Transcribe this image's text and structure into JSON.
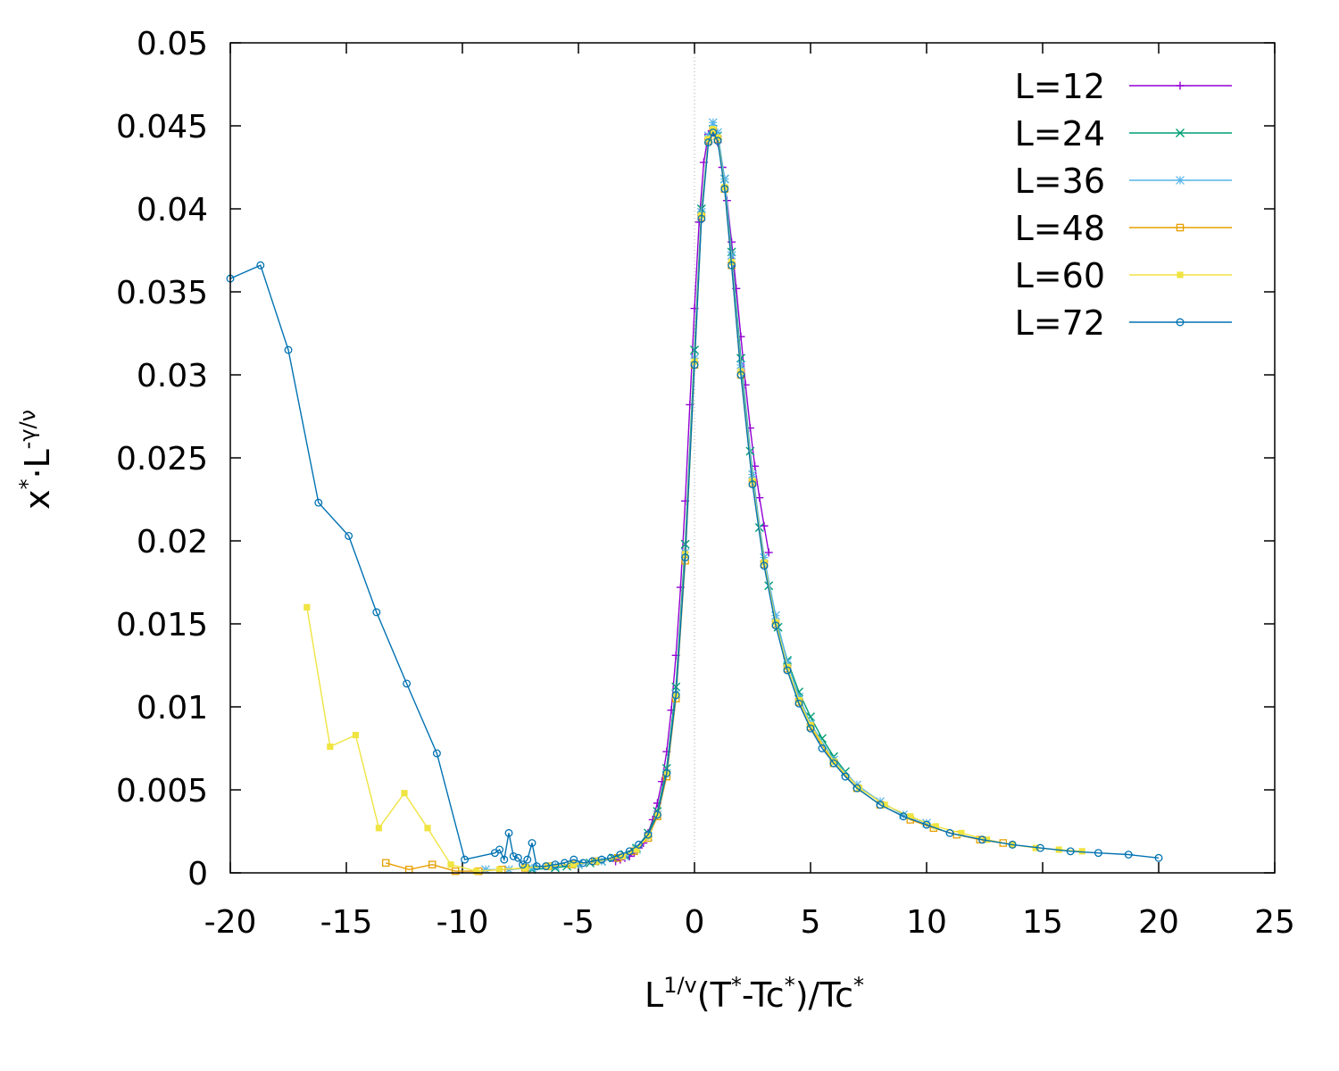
{
  "chart_data": {
    "type": "line",
    "title": "",
    "xlabel": {
      "base1": "L",
      "sup1": "1/v",
      "mid1": "(T",
      "sup2": "*",
      "mid2": "-Tc",
      "sup3": "*",
      "mid3": ")/Tc",
      "sup4": "*"
    },
    "ylabel": {
      "base1": "x",
      "sup1": "*",
      "mid": "·L",
      "sup2": "-γ/ν"
    },
    "xlim": [
      -20,
      25
    ],
    "ylim": [
      0,
      0.05
    ],
    "xticks": [
      "-20",
      "-15",
      "-10",
      "-5",
      "0",
      "5",
      "10",
      "15",
      "20",
      "25"
    ],
    "yticks": [
      "0",
      "0.005",
      "0.01",
      "0.015",
      "0.02",
      "0.025",
      "0.03",
      "0.035",
      "0.04",
      "0.045",
      "0.05"
    ],
    "vertical_reference_line_x": 0,
    "legend_position": "top-right",
    "series": [
      {
        "name": "L=12",
        "color": "#9400d3",
        "marker": "plus",
        "points": [
          [
            -3.4,
            0.0007
          ],
          [
            -3.2,
            0.0008
          ],
          [
            -3.0,
            0.0009
          ],
          [
            -2.8,
            0.001
          ],
          [
            -2.6,
            0.0012
          ],
          [
            -2.4,
            0.0015
          ],
          [
            -2.2,
            0.0018
          ],
          [
            -2.0,
            0.0024
          ],
          [
            -1.8,
            0.0032
          ],
          [
            -1.6,
            0.0042
          ],
          [
            -1.4,
            0.0055
          ],
          [
            -1.2,
            0.0073
          ],
          [
            -1.0,
            0.0098
          ],
          [
            -0.8,
            0.0131
          ],
          [
            -0.6,
            0.0172
          ],
          [
            -0.4,
            0.0224
          ],
          [
            -0.2,
            0.0282
          ],
          [
            0.0,
            0.034
          ],
          [
            0.2,
            0.0392
          ],
          [
            0.4,
            0.0428
          ],
          [
            0.6,
            0.0445
          ],
          [
            0.8,
            0.0446
          ],
          [
            1.0,
            0.044
          ],
          [
            1.2,
            0.0425
          ],
          [
            1.4,
            0.0405
          ],
          [
            1.6,
            0.038
          ],
          [
            1.8,
            0.0352
          ],
          [
            2.0,
            0.0323
          ],
          [
            2.2,
            0.0294
          ],
          [
            2.4,
            0.0268
          ],
          [
            2.6,
            0.0245
          ],
          [
            2.8,
            0.0226
          ],
          [
            3.0,
            0.0209
          ],
          [
            3.2,
            0.0193
          ]
        ]
      },
      {
        "name": "L=24",
        "color": "#009e73",
        "marker": "x",
        "points": [
          [
            -7.0,
            0.0002
          ],
          [
            -6.0,
            0.0003
          ],
          [
            -5.5,
            0.0004
          ],
          [
            -5.0,
            0.0005
          ],
          [
            -4.5,
            0.0006
          ],
          [
            -4.0,
            0.0007
          ],
          [
            -3.5,
            0.0009
          ],
          [
            -3.0,
            0.0011
          ],
          [
            -2.5,
            0.0015
          ],
          [
            -2.0,
            0.0024
          ],
          [
            -1.6,
            0.0037
          ],
          [
            -1.2,
            0.0063
          ],
          [
            -0.8,
            0.0112
          ],
          [
            -0.4,
            0.0198
          ],
          [
            0.0,
            0.0315
          ],
          [
            0.3,
            0.04
          ],
          [
            0.6,
            0.0442
          ],
          [
            0.8,
            0.0448
          ],
          [
            1.0,
            0.0444
          ],
          [
            1.3,
            0.0418
          ],
          [
            1.6,
            0.0374
          ],
          [
            2.0,
            0.031
          ],
          [
            2.4,
            0.0254
          ],
          [
            2.8,
            0.0208
          ],
          [
            3.2,
            0.0173
          ],
          [
            3.6,
            0.0148
          ],
          [
            4.0,
            0.0128
          ],
          [
            4.5,
            0.0109
          ],
          [
            5.0,
            0.0094
          ],
          [
            5.5,
            0.0081
          ],
          [
            6.0,
            0.007
          ],
          [
            6.5,
            0.0061
          ]
        ]
      },
      {
        "name": "L=36",
        "color": "#56b4e9",
        "marker": "star",
        "points": [
          [
            -9.0,
            0.0002
          ],
          [
            -8.0,
            0.0002
          ],
          [
            -7.0,
            0.0003
          ],
          [
            -6.0,
            0.0004
          ],
          [
            -5.0,
            0.0005
          ],
          [
            -4.0,
            0.0007
          ],
          [
            -3.0,
            0.001
          ],
          [
            -2.5,
            0.0014
          ],
          [
            -2.0,
            0.0022
          ],
          [
            -1.6,
            0.0035
          ],
          [
            -1.2,
            0.006
          ],
          [
            -0.8,
            0.0108
          ],
          [
            -0.4,
            0.0193
          ],
          [
            0.0,
            0.031
          ],
          [
            0.3,
            0.0398
          ],
          [
            0.6,
            0.0444
          ],
          [
            0.8,
            0.0452
          ],
          [
            1.0,
            0.0446
          ],
          [
            1.3,
            0.0418
          ],
          [
            1.6,
            0.0372
          ],
          [
            2.0,
            0.0306
          ],
          [
            2.5,
            0.024
          ],
          [
            3.0,
            0.019
          ],
          [
            3.5,
            0.0155
          ],
          [
            4.0,
            0.0127
          ],
          [
            4.5,
            0.0106
          ],
          [
            5.0,
            0.009
          ],
          [
            6.0,
            0.0068
          ],
          [
            7.0,
            0.0053
          ],
          [
            8.0,
            0.0043
          ],
          [
            9.0,
            0.0035
          ],
          [
            10.0,
            0.003
          ]
        ]
      },
      {
        "name": "L=48",
        "color": "#e69f00",
        "marker": "square-open",
        "points": [
          [
            -13.3,
            0.0006
          ],
          [
            -12.3,
            0.0002
          ],
          [
            -11.3,
            0.0005
          ],
          [
            -10.3,
            0.0001
          ],
          [
            -9.3,
            0.0001
          ],
          [
            -8.3,
            0.0002
          ],
          [
            -7.3,
            0.0003
          ],
          [
            -6.3,
            0.0004
          ],
          [
            -5.3,
            0.0005
          ],
          [
            -4.3,
            0.0007
          ],
          [
            -3.3,
            0.0009
          ],
          [
            -2.6,
            0.0013
          ],
          [
            -2.0,
            0.0021
          ],
          [
            -1.6,
            0.0034
          ],
          [
            -1.2,
            0.0058
          ],
          [
            -0.8,
            0.0105
          ],
          [
            -0.4,
            0.0188
          ],
          [
            0.0,
            0.0306
          ],
          [
            0.3,
            0.0395
          ],
          [
            0.6,
            0.0441
          ],
          [
            0.8,
            0.0447
          ],
          [
            1.0,
            0.0442
          ],
          [
            1.3,
            0.0412
          ],
          [
            1.6,
            0.0366
          ],
          [
            2.0,
            0.03
          ],
          [
            2.5,
            0.0235
          ],
          [
            3.0,
            0.0186
          ],
          [
            3.5,
            0.015
          ],
          [
            4.0,
            0.0123
          ],
          [
            4.5,
            0.0103
          ],
          [
            5.0,
            0.0088
          ],
          [
            6.0,
            0.0066
          ],
          [
            7.0,
            0.0051
          ],
          [
            8.0,
            0.0041
          ],
          [
            9.3,
            0.0032
          ],
          [
            10.3,
            0.0027
          ],
          [
            11.3,
            0.0023
          ],
          [
            12.3,
            0.002
          ],
          [
            13.3,
            0.0018
          ]
        ]
      },
      {
        "name": "L=60",
        "color": "#f0e442",
        "marker": "square-filled",
        "points": [
          [
            -16.7,
            0.016
          ],
          [
            -15.7,
            0.0076
          ],
          [
            -14.6,
            0.0083
          ],
          [
            -13.6,
            0.0027
          ],
          [
            -12.5,
            0.0048
          ],
          [
            -11.5,
            0.0027
          ],
          [
            -10.5,
            0.0005
          ],
          [
            -9.4,
            0.0001
          ],
          [
            -8.4,
            0.0002
          ],
          [
            -7.3,
            0.0003
          ],
          [
            -6.3,
            0.0004
          ],
          [
            -5.2,
            0.0005
          ],
          [
            -4.2,
            0.0007
          ],
          [
            -3.1,
            0.001
          ],
          [
            -2.5,
            0.0014
          ],
          [
            -2.0,
            0.0022
          ],
          [
            -1.6,
            0.0035
          ],
          [
            -1.2,
            0.006
          ],
          [
            -0.8,
            0.0107
          ],
          [
            -0.4,
            0.0192
          ],
          [
            0.0,
            0.0308
          ],
          [
            0.3,
            0.0396
          ],
          [
            0.6,
            0.0442
          ],
          [
            0.8,
            0.0448
          ],
          [
            1.0,
            0.0443
          ],
          [
            1.3,
            0.0413
          ],
          [
            1.6,
            0.0368
          ],
          [
            2.0,
            0.0302
          ],
          [
            2.5,
            0.0236
          ],
          [
            3.0,
            0.0187
          ],
          [
            3.5,
            0.0151
          ],
          [
            4.0,
            0.0124
          ],
          [
            4.5,
            0.0104
          ],
          [
            5.0,
            0.0089
          ],
          [
            6.0,
            0.0067
          ],
          [
            7.1,
            0.0051
          ],
          [
            8.2,
            0.0041
          ],
          [
            9.3,
            0.0034
          ],
          [
            10.4,
            0.0028
          ],
          [
            11.5,
            0.0024
          ],
          [
            12.6,
            0.002
          ],
          [
            13.7,
            0.0017
          ],
          [
            14.7,
            0.0015
          ],
          [
            15.7,
            0.0014
          ],
          [
            16.7,
            0.0013
          ]
        ]
      },
      {
        "name": "L=72",
        "color": "#0072b2",
        "marker": "circle-open",
        "points": [
          [
            -20.0,
            0.0358
          ],
          [
            -18.7,
            0.0366
          ],
          [
            -17.5,
            0.0315
          ],
          [
            -16.2,
            0.0223
          ],
          [
            -14.9,
            0.0203
          ],
          [
            -13.7,
            0.0157
          ],
          [
            -12.4,
            0.0114
          ],
          [
            -11.1,
            0.0072
          ],
          [
            -9.9,
            0.0008
          ],
          [
            -8.6,
            0.0012
          ],
          [
            -8.4,
            0.0014
          ],
          [
            -8.2,
            0.0008
          ],
          [
            -8.0,
            0.0024
          ],
          [
            -7.8,
            0.001
          ],
          [
            -7.6,
            0.0009
          ],
          [
            -7.4,
            0.0005
          ],
          [
            -7.2,
            0.0008
          ],
          [
            -7.0,
            0.0018
          ],
          [
            -6.8,
            0.0004
          ],
          [
            -6.4,
            0.0004
          ],
          [
            -6.0,
            0.0005
          ],
          [
            -5.6,
            0.0006
          ],
          [
            -5.2,
            0.0008
          ],
          [
            -4.8,
            0.0006
          ],
          [
            -4.4,
            0.0007
          ],
          [
            -4.0,
            0.0008
          ],
          [
            -3.6,
            0.0009
          ],
          [
            -3.2,
            0.0011
          ],
          [
            -2.8,
            0.0013
          ],
          [
            -2.4,
            0.0017
          ],
          [
            -2.0,
            0.0023
          ],
          [
            -1.6,
            0.0035
          ],
          [
            -1.2,
            0.006
          ],
          [
            -0.8,
            0.0107
          ],
          [
            -0.4,
            0.019
          ],
          [
            0.0,
            0.0306
          ],
          [
            0.3,
            0.0394
          ],
          [
            0.6,
            0.044
          ],
          [
            0.8,
            0.0446
          ],
          [
            1.0,
            0.0441
          ],
          [
            1.3,
            0.0412
          ],
          [
            1.6,
            0.0366
          ],
          [
            2.0,
            0.03
          ],
          [
            2.5,
            0.0234
          ],
          [
            3.0,
            0.0185
          ],
          [
            3.5,
            0.0149
          ],
          [
            4.0,
            0.0122
          ],
          [
            4.5,
            0.0102
          ],
          [
            5.0,
            0.0087
          ],
          [
            5.5,
            0.0075
          ],
          [
            6.0,
            0.0066
          ],
          [
            6.5,
            0.0058
          ],
          [
            7.0,
            0.0051
          ],
          [
            8.0,
            0.0041
          ],
          [
            9.0,
            0.0034
          ],
          [
            10.0,
            0.0029
          ],
          [
            11.0,
            0.0024
          ],
          [
            12.4,
            0.002
          ],
          [
            13.7,
            0.0017
          ],
          [
            14.9,
            0.0015
          ],
          [
            16.2,
            0.0013
          ],
          [
            17.4,
            0.0012
          ],
          [
            18.7,
            0.0011
          ],
          [
            20.0,
            0.0009
          ]
        ]
      }
    ]
  }
}
